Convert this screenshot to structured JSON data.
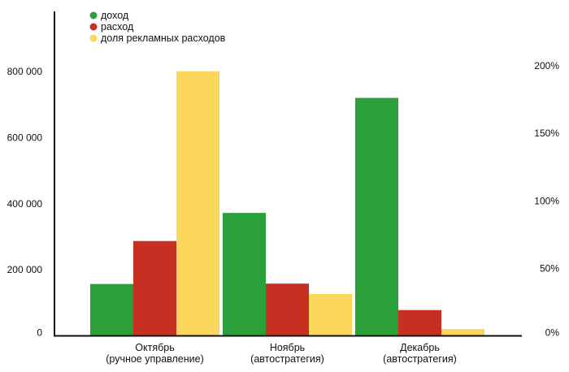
{
  "chart_data": {
    "type": "bar",
    "categories": [
      [
        "Октябрь",
        "(ручное управление)"
      ],
      [
        "Ноябрь",
        "(автостратегия)"
      ],
      [
        "Декабрь",
        "(автостратегия)"
      ]
    ],
    "series": [
      {
        "name": "доход",
        "axis": "left",
        "color": "#2ba03a",
        "values": [
          157000,
          372000,
          720000
        ]
      },
      {
        "name": "расход",
        "axis": "left",
        "color": "#c82f23",
        "values": [
          287000,
          158000,
          78000
        ]
      },
      {
        "name": "доля рекламных расходов",
        "axis": "right",
        "color": "#fbd85b",
        "values": [
          196,
          31,
          5
        ]
      }
    ],
    "y_left": {
      "min": 0,
      "max": 800000,
      "ticks": [
        0,
        200000,
        400000,
        600000,
        800000
      ],
      "tick_labels": [
        "0",
        "200 000",
        "400 000",
        "600 000",
        "800 000"
      ]
    },
    "y_right": {
      "min": 0,
      "max": 200,
      "ticks": [
        0,
        50,
        100,
        150,
        200
      ],
      "tick_labels": [
        "0%",
        "50%",
        "100%",
        "150%",
        "200%"
      ]
    },
    "legend_position": "top-left",
    "grid": false
  }
}
